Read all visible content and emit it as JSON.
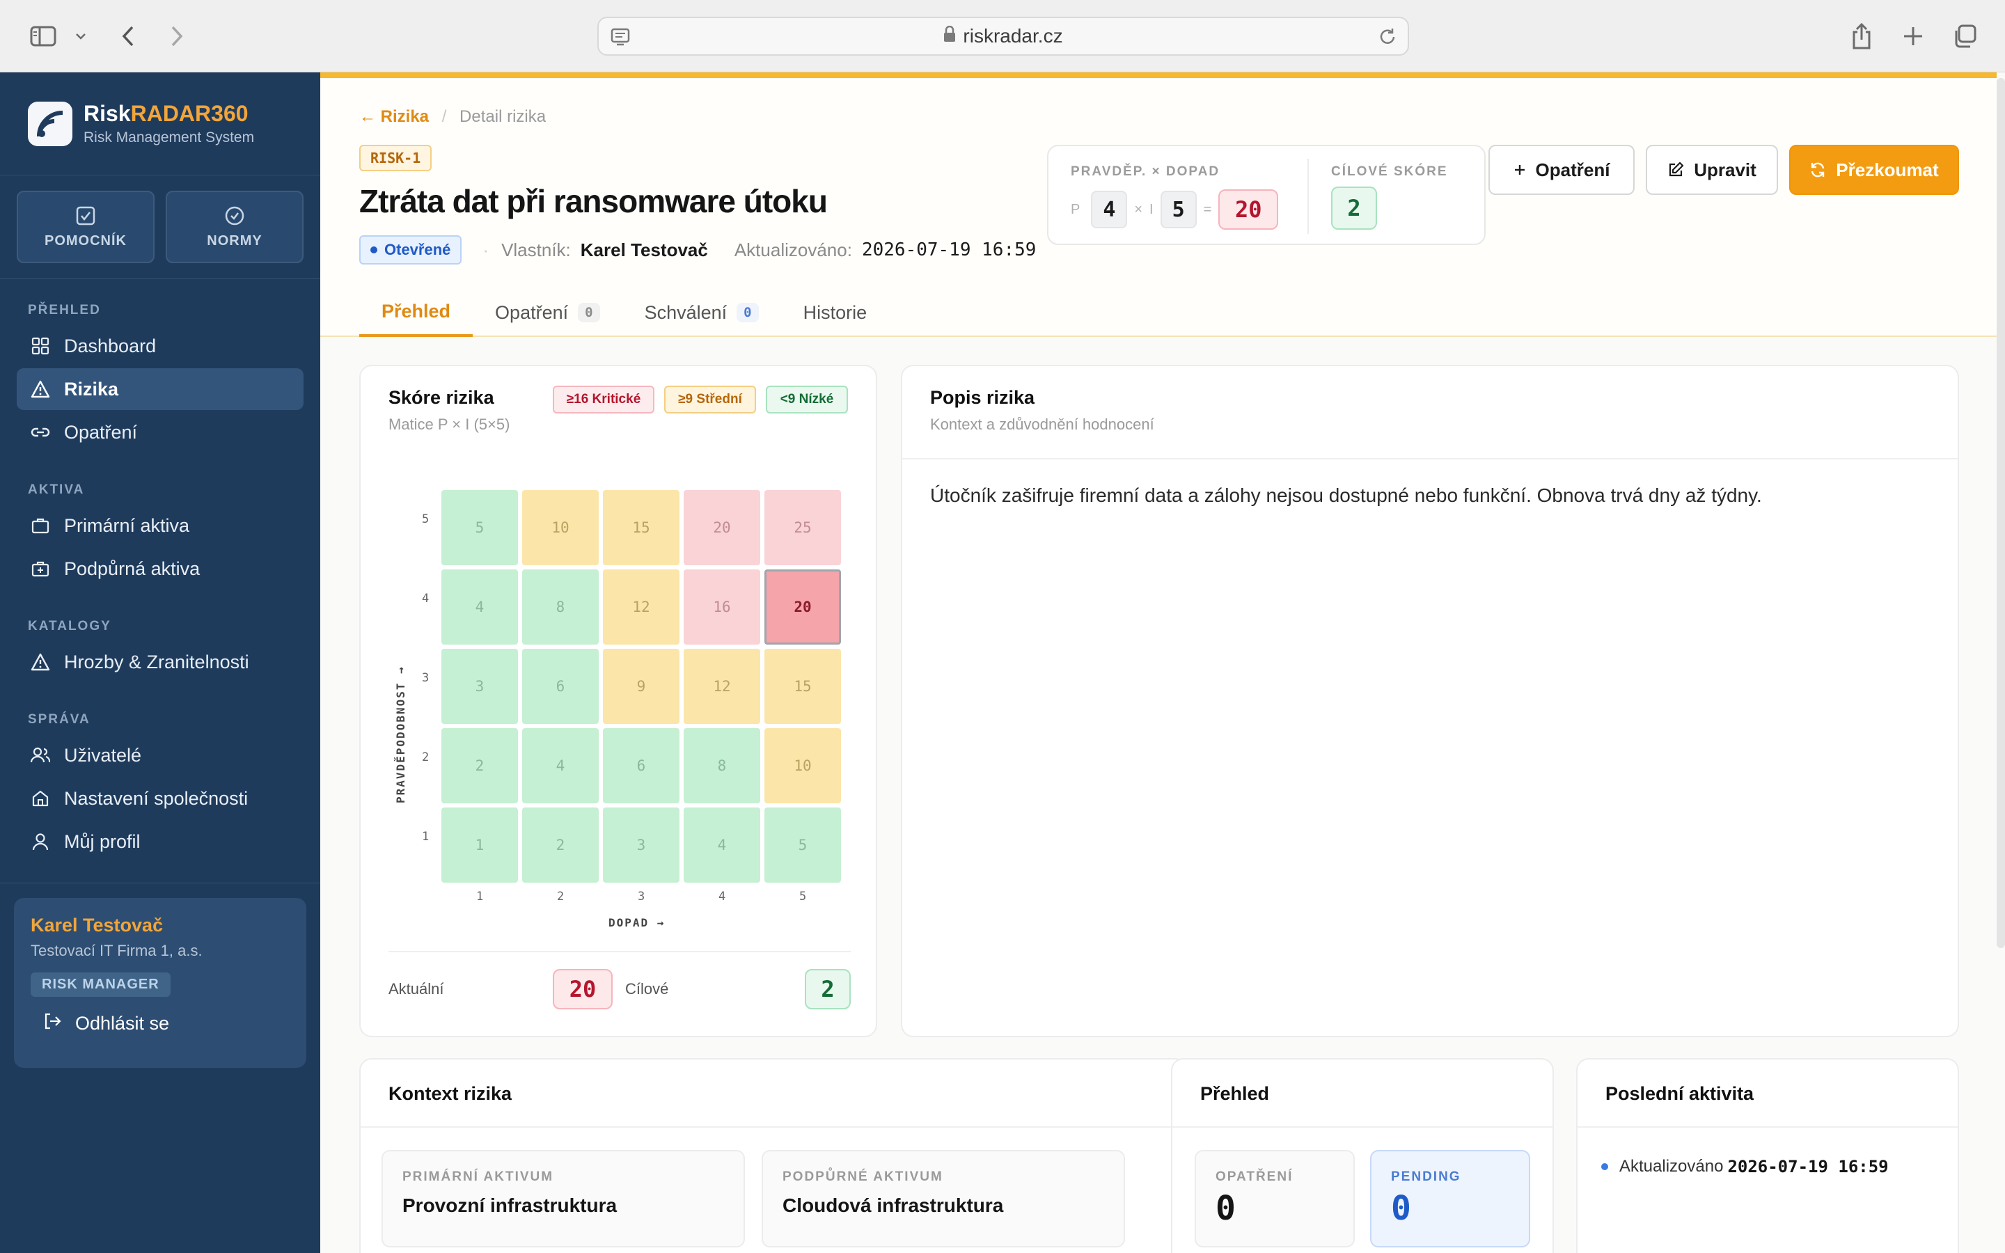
{
  "browser": {
    "url": "riskradar.cz"
  },
  "sidebar": {
    "brand_prefix": "Risk",
    "brand_accent": "RADAR360",
    "brand_sub": "Risk Management System",
    "quick": [
      {
        "label": "POMOCNÍK",
        "icon": "check-square-icon"
      },
      {
        "label": "NORMY",
        "icon": "check-circle-icon"
      }
    ],
    "sections": [
      {
        "title": "PŘEHLED",
        "items": [
          {
            "label": "Dashboard",
            "icon": "grid-icon"
          },
          {
            "label": "Rizika",
            "icon": "warning-icon",
            "active": true
          },
          {
            "label": "Opatření",
            "icon": "link-icon"
          }
        ]
      },
      {
        "title": "AKTIVA",
        "items": [
          {
            "label": "Primární aktiva",
            "icon": "briefcase-icon"
          },
          {
            "label": "Podpůrná aktiva",
            "icon": "briefcase-plus-icon"
          }
        ]
      },
      {
        "title": "KATALOGY",
        "items": [
          {
            "label": "Hrozby & Zranitelnosti",
            "icon": "warning-icon"
          }
        ]
      },
      {
        "title": "SPRÁVA",
        "items": [
          {
            "label": "Uživatelé",
            "icon": "users-icon"
          },
          {
            "label": "Nastavení společnosti",
            "icon": "home-icon"
          },
          {
            "label": "Můj profil",
            "icon": "user-icon"
          }
        ]
      }
    ],
    "user": {
      "name": "Karel Testovač",
      "company": "Testovací IT Firma 1, a.s.",
      "role": "RISK MANAGER",
      "logout": "Odhlásit se"
    }
  },
  "header": {
    "breadcrumb_back": "← Rizika",
    "breadcrumb_sep": "/",
    "breadcrumb_current": "Detail rizika",
    "risk_id": "RISK-1",
    "title": "Ztráta dat při ransomware útoku",
    "status": "Otevřené",
    "owner_label": "Vlastník:",
    "owner": "Karel Testovač",
    "updated_label": "Aktualizováno:",
    "updated": "2026-07-19 16:59",
    "score": {
      "label": "PRAVDĚP. × DOPAD",
      "p_label": "P",
      "p": "4",
      "times": "×",
      "i_label": "I",
      "i": "5",
      "eq": "=",
      "result": "20",
      "target_label": "CÍLOVÉ SKÓRE",
      "target": "2"
    },
    "buttons": {
      "measure": "Opatření",
      "edit": "Upravit",
      "review": "Přezkoumat"
    },
    "tabs": [
      {
        "label": "Přehled",
        "active": true
      },
      {
        "label": "Opatření",
        "count": "0"
      },
      {
        "label": "Schválení",
        "count": "0"
      },
      {
        "label": "Historie"
      }
    ]
  },
  "score_card": {
    "title": "Skóre rizika",
    "subtitle": "Matice P × I (5×5)",
    "legend": [
      {
        "label": "≥16 Kritické",
        "color": "#b3162e"
      },
      {
        "label": "≥9 Střední",
        "color": "#b4670b"
      },
      {
        "label": "<9 Nízké",
        "color": "#146c36"
      }
    ],
    "y_axis": "PRAVDĚPODOBNOST →",
    "x_axis": "DOPAD →",
    "ticks": [
      "1",
      "2",
      "3",
      "4",
      "5"
    ],
    "selected": {
      "p": 4,
      "i": 5
    },
    "current_label": "Aktuální",
    "current": "20",
    "target_label": "Cílové",
    "target": "2"
  },
  "description": {
    "title": "Popis rizika",
    "subtitle": "Kontext a zdůvodnění hodnocení",
    "text": "Útočník zašifruje firemní data a zálohy nejsou dostupné nebo funkční. Obnova trvá dny až týdny."
  },
  "context": {
    "title": "Kontext rizika",
    "primary_label": "PRIMÁRNÍ AKTIVUM",
    "primary": "Provozní infrastruktura",
    "support_label": "PODPŮRNÉ AKTIVUM",
    "support": "Cloudová infrastruktura"
  },
  "overview": {
    "title": "Přehled",
    "measures_label": "OPATŘENÍ",
    "measures": "0",
    "pending_label": "PENDING",
    "pending": "0"
  },
  "activity": {
    "title": "Poslední aktivita",
    "label": "Aktualizováno",
    "value": "2026-07-19 16:59"
  }
}
